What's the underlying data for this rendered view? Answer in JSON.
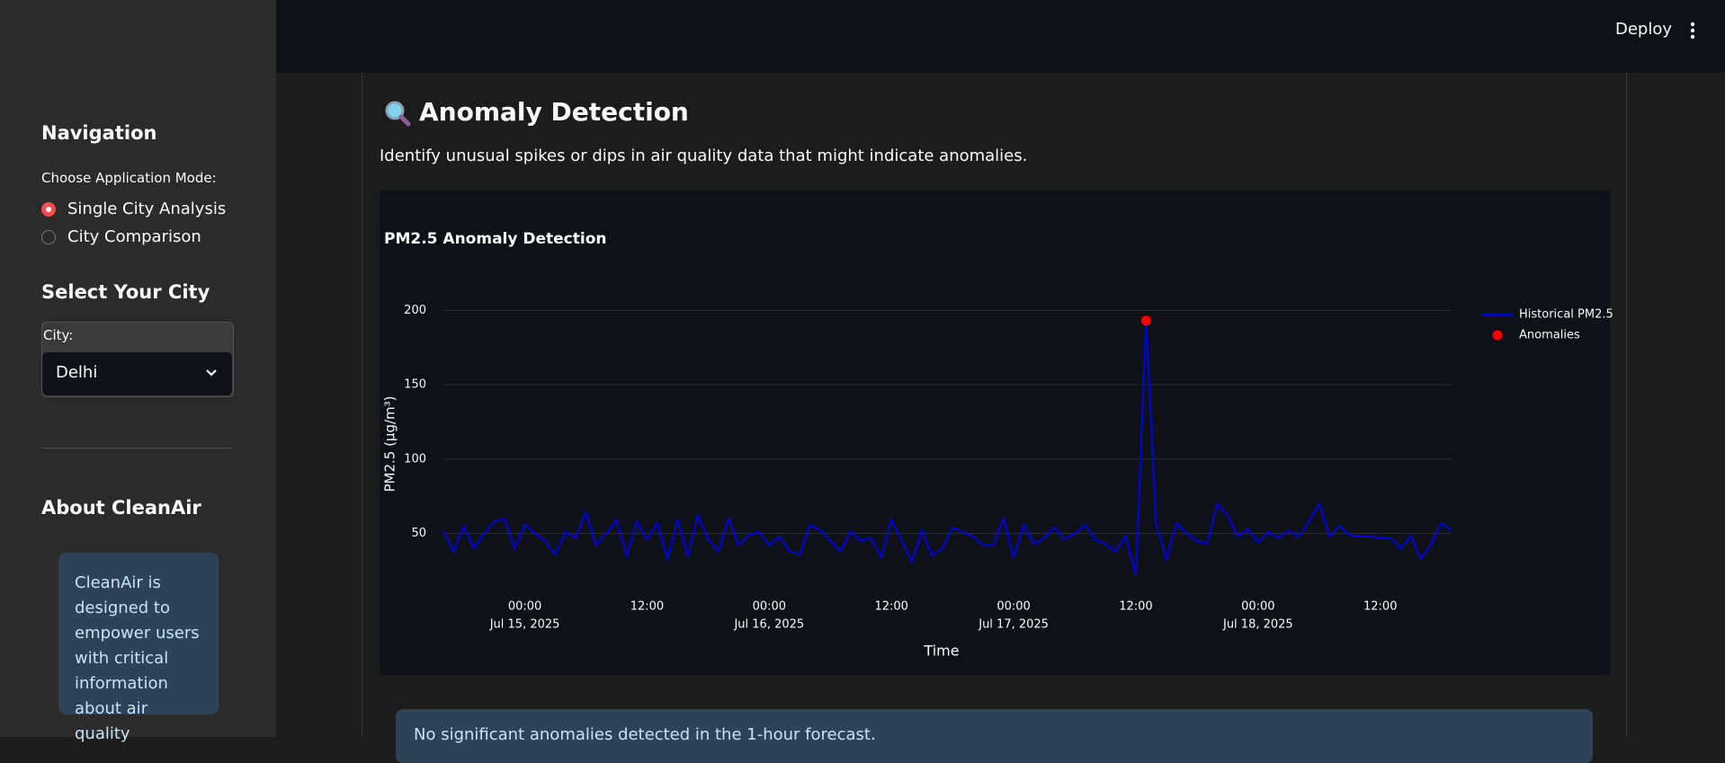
{
  "header": {
    "deploy": "Deploy"
  },
  "sidebar": {
    "navigation": "Navigation",
    "mode_label": "Choose Application Mode:",
    "modes": [
      "Single City Analysis",
      "City Comparison"
    ],
    "select_city": "Select Your City",
    "city_label": "City:",
    "city": "Delhi",
    "about": "About CleanAir",
    "about_text": "CleanAir is designed to empower users with critical information about air quality"
  },
  "main": {
    "section_title": "Anomaly Detection",
    "description": "Identify unusual spikes or dips in air quality data that might indicate anomalies.",
    "info": "No significant anomalies detected in the 1-hour forecast."
  },
  "chart_data": {
    "type": "line",
    "title": "PM2.5 Anomaly Detection",
    "x_label": "Time",
    "y_label": "PM2.5 (µg/m³)",
    "x": [
      "2025-07-14 16:00",
      "2025-07-14 17:00",
      "2025-07-14 18:00",
      "2025-07-14 19:00",
      "2025-07-14 20:00",
      "2025-07-14 21:00",
      "2025-07-14 22:00",
      "2025-07-14 23:00",
      "2025-07-15 00:00",
      "2025-07-15 01:00",
      "2025-07-15 02:00",
      "2025-07-15 03:00",
      "2025-07-15 04:00",
      "2025-07-15 05:00",
      "2025-07-15 06:00",
      "2025-07-15 07:00",
      "2025-07-15 08:00",
      "2025-07-15 09:00",
      "2025-07-15 10:00",
      "2025-07-15 11:00",
      "2025-07-15 12:00",
      "2025-07-15 13:00",
      "2025-07-15 14:00",
      "2025-07-15 15:00",
      "2025-07-15 16:00",
      "2025-07-15 17:00",
      "2025-07-15 18:00",
      "2025-07-15 19:00",
      "2025-07-15 20:00",
      "2025-07-15 21:00",
      "2025-07-15 22:00",
      "2025-07-15 23:00",
      "2025-07-16 00:00",
      "2025-07-16 01:00",
      "2025-07-16 02:00",
      "2025-07-16 03:00",
      "2025-07-16 04:00",
      "2025-07-16 05:00",
      "2025-07-16 06:00",
      "2025-07-16 07:00",
      "2025-07-16 08:00",
      "2025-07-16 09:00",
      "2025-07-16 10:00",
      "2025-07-16 11:00",
      "2025-07-16 12:00",
      "2025-07-16 13:00",
      "2025-07-16 14:00",
      "2025-07-16 15:00",
      "2025-07-16 16:00",
      "2025-07-16 17:00",
      "2025-07-16 18:00",
      "2025-07-16 19:00",
      "2025-07-16 20:00",
      "2025-07-16 21:00",
      "2025-07-16 22:00",
      "2025-07-16 23:00",
      "2025-07-17 00:00",
      "2025-07-17 01:00",
      "2025-07-17 02:00",
      "2025-07-17 03:00",
      "2025-07-17 04:00",
      "2025-07-17 05:00",
      "2025-07-17 06:00",
      "2025-07-17 07:00",
      "2025-07-17 08:00",
      "2025-07-17 09:00",
      "2025-07-17 10:00",
      "2025-07-17 11:00",
      "2025-07-17 12:00",
      "2025-07-17 13:00",
      "2025-07-17 14:00",
      "2025-07-17 15:00",
      "2025-07-17 16:00",
      "2025-07-17 17:00",
      "2025-07-17 18:00",
      "2025-07-17 19:00",
      "2025-07-17 20:00",
      "2025-07-17 21:00",
      "2025-07-17 22:00",
      "2025-07-17 23:00",
      "2025-07-18 00:00",
      "2025-07-18 01:00",
      "2025-07-18 02:00",
      "2025-07-18 03:00",
      "2025-07-18 04:00",
      "2025-07-18 05:00",
      "2025-07-18 06:00",
      "2025-07-18 07:00",
      "2025-07-18 08:00",
      "2025-07-18 09:00",
      "2025-07-18 10:00",
      "2025-07-18 11:00",
      "2025-07-18 12:00",
      "2025-07-18 13:00",
      "2025-07-18 14:00",
      "2025-07-18 15:00",
      "2025-07-18 16:00",
      "2025-07-18 17:00",
      "2025-07-18 18:00",
      "2025-07-18 19:00"
    ],
    "series": [
      {
        "name": "Historical PM2.5",
        "color": "#0000e6",
        "values": [
          52,
          38,
          55,
          40,
          50,
          58,
          60,
          40,
          56,
          50,
          45,
          36,
          51,
          47,
          64,
          42,
          50,
          59,
          35,
          58,
          46,
          57,
          33,
          59,
          35,
          62,
          46,
          38,
          60,
          42,
          49,
          51,
          42,
          48,
          38,
          36,
          56,
          52,
          45,
          38,
          51,
          45,
          47,
          34,
          59,
          45,
          31,
          52,
          35,
          40,
          54,
          51,
          48,
          42,
          42,
          60,
          34,
          56,
          43,
          47,
          54,
          46,
          50,
          56,
          46,
          43,
          38,
          48,
          22,
          193,
          56,
          33,
          57,
          50,
          45,
          43,
          70,
          62,
          48,
          53,
          44,
          51,
          47,
          52,
          48,
          58,
          70,
          48,
          55,
          49,
          48,
          48,
          47,
          47,
          40,
          48,
          33,
          43,
          57,
          52
        ]
      },
      {
        "name": "Anomalies",
        "color": "#ff0000",
        "x": [
          "2025-07-17 13:00"
        ],
        "values": [
          193
        ]
      }
    ],
    "xlim": [
      "2025-07-14 16:00",
      "2025-07-18 19:00"
    ],
    "xticks": [
      {
        "value": "2025-07-15 00:00",
        "label": "00:00",
        "date_label": "Jul 15, 2025"
      },
      {
        "value": "2025-07-15 12:00",
        "label": "12:00"
      },
      {
        "value": "2025-07-16 00:00",
        "label": "00:00",
        "date_label": "Jul 16, 2025"
      },
      {
        "value": "2025-07-16 12:00",
        "label": "12:00"
      },
      {
        "value": "2025-07-17 00:00",
        "label": "00:00",
        "date_label": "Jul 17, 2025"
      },
      {
        "value": "2025-07-17 12:00",
        "label": "12:00"
      },
      {
        "value": "2025-07-18 00:00",
        "label": "00:00",
        "date_label": "Jul 18, 2025"
      },
      {
        "value": "2025-07-18 12:00",
        "label": "12:00"
      }
    ],
    "ylim": [
      9.3,
      214.7
    ],
    "yticks": [
      50,
      100,
      150,
      200
    ],
    "grid": true,
    "legend": "top-right"
  }
}
